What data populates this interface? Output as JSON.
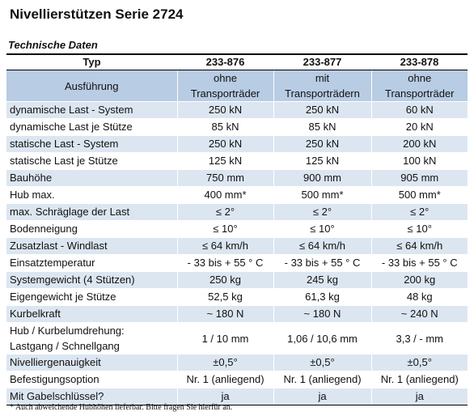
{
  "title": "Nivellierstützen Serie 2724",
  "section": "Technische Daten",
  "table": {
    "header_label": "Typ",
    "types": [
      "233-876",
      "233-877",
      "233-878"
    ],
    "ausfuehrung_label": "Ausführung",
    "ausfuehrung": [
      "ohne\nTransporträder",
      "mit\nTransporträdern",
      "ohne\nTransporträder"
    ],
    "rows": [
      {
        "label": "dynamische Last - System",
        "values": [
          "250 kN",
          "250 kN",
          "60 kN"
        ]
      },
      {
        "label": "dynamische Last je Stütze",
        "values": [
          "85 kN",
          "85 kN",
          "20 kN"
        ]
      },
      {
        "label": "statische Last - System",
        "values": [
          "250 kN",
          "250 kN",
          "200 kN"
        ]
      },
      {
        "label": "statische Last je Stütze",
        "values": [
          "125 kN",
          "125 kN",
          "100 kN"
        ]
      },
      {
        "label": "Bauhöhe",
        "values": [
          "750 mm",
          "900 mm",
          "905 mm"
        ]
      },
      {
        "label": "Hub max.",
        "values": [
          "400 mm*",
          "500 mm*",
          "500 mm*"
        ]
      },
      {
        "label": "max. Schräglage der Last",
        "values": [
          "≤ 2°",
          "≤ 2°",
          "≤ 2°"
        ]
      },
      {
        "label": "Bodenneigung",
        "values": [
          "≤ 10°",
          "≤ 10°",
          "≤ 10°"
        ]
      },
      {
        "label": "Zusatzlast - Windlast",
        "values": [
          "≤ 64 km/h",
          "≤ 64 km/h",
          "≤ 64 km/h"
        ]
      },
      {
        "label": "Einsatztemperatur",
        "values": [
          "- 33 bis + 55 ° C",
          "- 33 bis + 55 ° C",
          "- 33 bis + 55 ° C"
        ]
      },
      {
        "label": "Systemgewicht (4 Stützen)",
        "values": [
          "250 kg",
          "245 kg",
          "200 kg"
        ]
      },
      {
        "label": "Eigengewicht je Stütze",
        "values": [
          "52,5 kg",
          "61,3 kg",
          "48 kg"
        ]
      },
      {
        "label": "Kurbelkraft",
        "values": [
          "~ 180 N",
          "~ 180 N",
          "~ 240 N"
        ]
      },
      {
        "label": "Hub / Kurbelumdrehung:\nLastgang / Schnellgang",
        "values": [
          "1 / 10 mm",
          "1,06 / 10,6 mm",
          "3,3 / - mm"
        ]
      },
      {
        "label": "Nivelliergenauigkeit",
        "values": [
          "±0,5°",
          "±0,5°",
          "±0,5°"
        ]
      },
      {
        "label": "Befestigungsoption",
        "values": [
          "Nr. 1 (anliegend)",
          "Nr. 1 (anliegend)",
          "Nr. 1 (anliegend)"
        ]
      },
      {
        "label": "Mit Gabelschlüssel?",
        "values": [
          "ja",
          "ja",
          "ja"
        ]
      }
    ]
  },
  "footnote": "* Auch abweichende Hubhöhen lieferbar. Bitte fragen Sie hierfür an."
}
